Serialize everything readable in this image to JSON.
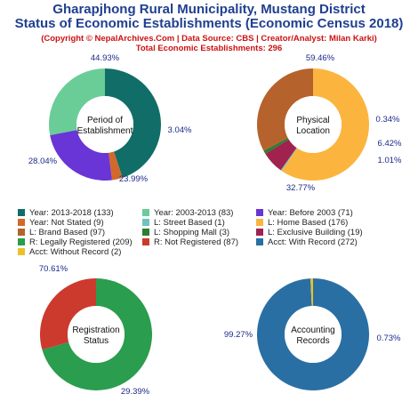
{
  "header": {
    "title_line1": "Gharapjhong Rural Municipality, Mustang District",
    "title_line2": "Status of Economic Establishments (Economic Census 2018)",
    "copyright": "(Copyright © NepalArchives.Com | Data Source: CBS | Creator/Analyst: Milan Karki)",
    "total": "Total Economic Establishments: 296"
  },
  "chart_data": [
    {
      "type": "pie",
      "center_label": [
        "Period of",
        "Establishment"
      ],
      "slices": [
        {
          "label": "Year: 2013-2018",
          "value": 133,
          "pct": "44.93%",
          "color": "#116d68"
        },
        {
          "label": "Year: Not Stated",
          "value": 9,
          "pct": "3.04%",
          "color": "#d2692a"
        },
        {
          "label": "Year: Before 2003",
          "value": 71,
          "pct": "23.99%",
          "color": "#6a35d6"
        },
        {
          "label": "Year: 2003-2013",
          "value": 83,
          "pct": "28.04%",
          "color": "#6acd98"
        }
      ]
    },
    {
      "type": "pie",
      "center_label": [
        "Physical",
        "Location"
      ],
      "slices": [
        {
          "label": "L: Home Based",
          "value": 176,
          "pct": "59.46%",
          "color": "#fbb53e"
        },
        {
          "label": "L: Street Based",
          "value": 1,
          "pct": "0.34%",
          "color": "#6ec3c1"
        },
        {
          "label": "L: Exclusive Building",
          "value": 19,
          "pct": "6.42%",
          "color": "#a0224e"
        },
        {
          "label": "L: Shopping Mall",
          "value": 3,
          "pct": "1.01%",
          "color": "#2e7d32"
        },
        {
          "label": "L: Brand Based",
          "value": 97,
          "pct": "32.77%",
          "color": "#b5622c"
        }
      ]
    },
    {
      "type": "pie",
      "center_label": [
        "Registration",
        "Status"
      ],
      "slices": [
        {
          "label": "R: Legally Registered",
          "value": 209,
          "pct": "70.61%",
          "color": "#2a9d4e"
        },
        {
          "label": "R: Not Registered",
          "value": 87,
          "pct": "29.39%",
          "color": "#cc3a2e"
        }
      ]
    },
    {
      "type": "pie",
      "center_label": [
        "Accounting",
        "Records"
      ],
      "slices": [
        {
          "label": "Acct: With Record",
          "value": 272,
          "pct": "99.27%",
          "color": "#2a6fa3"
        },
        {
          "label": "Acct: Without Record",
          "value": 2,
          "pct": "0.73%",
          "color": "#e8c22a"
        }
      ]
    }
  ],
  "legend": [
    {
      "text": "Year: 2013-2018 (133)",
      "color": "#116d68"
    },
    {
      "text": "Year: 2003-2013 (83)",
      "color": "#6acd98"
    },
    {
      "text": "Year: Before 2003 (71)",
      "color": "#6a35d6"
    },
    {
      "text": "Year: Not Stated (9)",
      "color": "#d2692a"
    },
    {
      "text": "L: Street Based (1)",
      "color": "#6ec3c1"
    },
    {
      "text": "L: Home Based (176)",
      "color": "#fbb53e"
    },
    {
      "text": "L: Brand Based (97)",
      "color": "#b5622c"
    },
    {
      "text": "L: Shopping Mall (3)",
      "color": "#2e7d32"
    },
    {
      "text": "L: Exclusive Building (19)",
      "color": "#a0224e"
    },
    {
      "text": "R: Legally Registered (209)",
      "color": "#2a9d4e"
    },
    {
      "text": "R: Not Registered (87)",
      "color": "#cc3a2e"
    },
    {
      "text": "Acct: With Record (272)",
      "color": "#2a6fa3"
    },
    {
      "text": "Acct: Without Record (2)",
      "color": "#e8c22a"
    }
  ]
}
